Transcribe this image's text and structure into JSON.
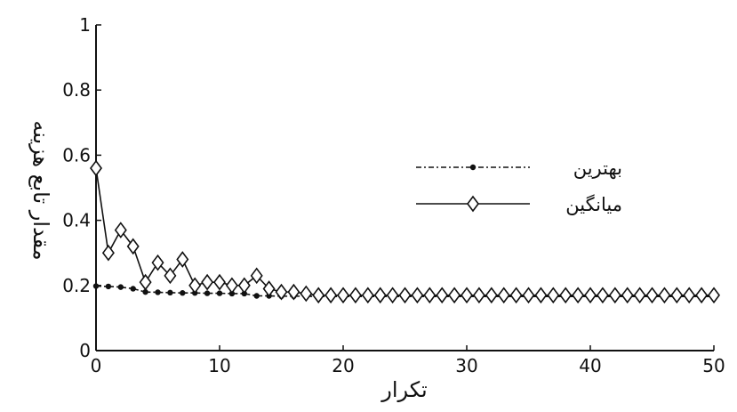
{
  "chart_data": {
    "type": "line",
    "xlabel": "تکرار",
    "ylabel": "مقدار تابع هزینه",
    "xlim": [
      0,
      50
    ],
    "ylim": [
      0,
      1
    ],
    "xticks": [
      "0",
      "10",
      "20",
      "30",
      "40",
      "50"
    ],
    "yticks": [
      "0",
      "0.2",
      "0.4",
      "0.6",
      "0.8",
      "1"
    ],
    "legend_position": "right",
    "grid": false,
    "x": [
      0,
      1,
      2,
      3,
      4,
      5,
      6,
      7,
      8,
      9,
      10,
      11,
      12,
      13,
      14,
      15,
      16,
      17,
      18,
      19,
      20,
      21,
      22,
      23,
      24,
      25,
      26,
      27,
      28,
      29,
      30,
      31,
      32,
      33,
      34,
      35,
      36,
      37,
      38,
      39,
      40,
      41,
      42,
      43,
      44,
      45,
      46,
      47,
      48,
      49,
      50
    ],
    "series": [
      {
        "name": "بهترین",
        "style": "dash-dot with filled circle markers",
        "color": "#111111",
        "values": [
          0.198,
          0.197,
          0.195,
          0.19,
          0.18,
          0.179,
          0.178,
          0.177,
          0.177,
          0.176,
          0.176,
          0.175,
          0.175,
          0.168,
          0.168,
          0.167,
          0.167,
          0.167,
          0.166,
          0.166,
          0.166,
          0.166,
          0.166,
          0.166,
          0.166,
          0.166,
          0.166,
          0.166,
          0.166,
          0.166,
          0.166,
          0.166,
          0.166,
          0.166,
          0.166,
          0.166,
          0.166,
          0.166,
          0.166,
          0.166,
          0.166,
          0.166,
          0.166,
          0.166,
          0.166,
          0.166,
          0.166,
          0.166,
          0.166,
          0.166,
          0.166
        ]
      },
      {
        "name": "میانگین",
        "style": "solid with open diamond markers",
        "color": "#111111",
        "values": [
          0.56,
          0.3,
          0.37,
          0.32,
          0.21,
          0.27,
          0.23,
          0.28,
          0.2,
          0.21,
          0.21,
          0.2,
          0.2,
          0.23,
          0.19,
          0.18,
          0.18,
          0.175,
          0.17,
          0.17,
          0.17,
          0.17,
          0.17,
          0.17,
          0.17,
          0.17,
          0.17,
          0.17,
          0.17,
          0.17,
          0.17,
          0.17,
          0.17,
          0.17,
          0.17,
          0.17,
          0.17,
          0.17,
          0.17,
          0.17,
          0.17,
          0.17,
          0.17,
          0.17,
          0.17,
          0.17,
          0.17,
          0.17,
          0.17,
          0.17,
          0.17
        ]
      }
    ]
  }
}
